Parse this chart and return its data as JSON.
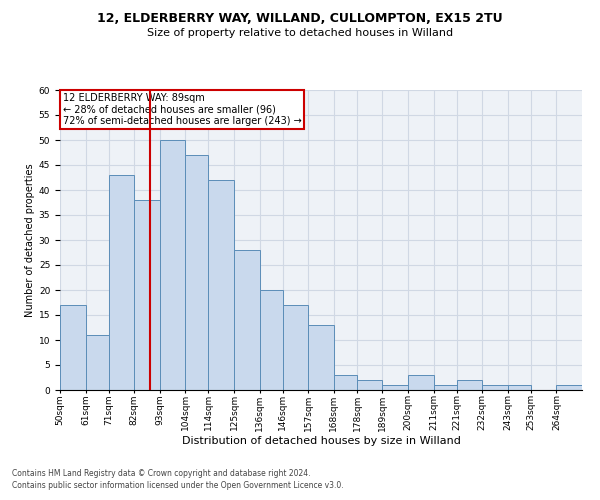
{
  "title1": "12, ELDERBERRY WAY, WILLAND, CULLOMPTON, EX15 2TU",
  "title2": "Size of property relative to detached houses in Willand",
  "xlabel": "Distribution of detached houses by size in Willand",
  "ylabel": "Number of detached properties",
  "bin_labels": [
    "50sqm",
    "61sqm",
    "71sqm",
    "82sqm",
    "93sqm",
    "104sqm",
    "114sqm",
    "125sqm",
    "136sqm",
    "146sqm",
    "157sqm",
    "168sqm",
    "178sqm",
    "189sqm",
    "200sqm",
    "211sqm",
    "221sqm",
    "232sqm",
    "243sqm",
    "253sqm",
    "264sqm"
  ],
  "bar_values": [
    17,
    11,
    43,
    38,
    50,
    47,
    42,
    28,
    20,
    17,
    13,
    3,
    2,
    1,
    3,
    1,
    2,
    1,
    1,
    0,
    1
  ],
  "bar_color": "#c9d9ed",
  "bar_edge_color": "#5b8db8",
  "vline_x": 89,
  "bin_edges": [
    50,
    61,
    71,
    82,
    93,
    104,
    114,
    125,
    136,
    146,
    157,
    168,
    178,
    189,
    200,
    211,
    221,
    232,
    243,
    253,
    264,
    275
  ],
  "annotation_text": "12 ELDERBERRY WAY: 89sqm\n← 28% of detached houses are smaller (96)\n72% of semi-detached houses are larger (243) →",
  "annotation_box_color": "#ffffff",
  "annotation_box_edge_color": "#cc0000",
  "footer1": "Contains HM Land Registry data © Crown copyright and database right 2024.",
  "footer2": "Contains public sector information licensed under the Open Government Licence v3.0.",
  "vline_color": "#cc0000",
  "ylim": [
    0,
    60
  ],
  "yticks": [
    0,
    5,
    10,
    15,
    20,
    25,
    30,
    35,
    40,
    45,
    50,
    55,
    60
  ],
  "grid_color": "#d0d8e4",
  "bg_color": "#eef2f7",
  "title1_fontsize": 9,
  "title2_fontsize": 8,
  "xlabel_fontsize": 8,
  "ylabel_fontsize": 7,
  "tick_fontsize": 6.5,
  "annot_fontsize": 7,
  "footer_fontsize": 5.5
}
